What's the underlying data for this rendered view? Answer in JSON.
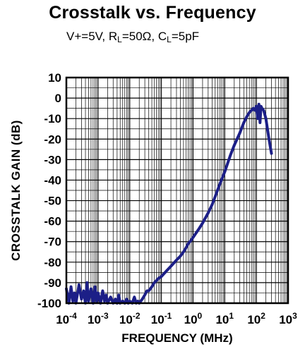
{
  "chart_data": {
    "type": "line",
    "title": "Crosstalk vs. Frequency",
    "subtitle": {
      "parts": [
        {
          "text": "V+=5V, R"
        },
        {
          "text": "L",
          "sub": true
        },
        {
          "text": "=50Ω, C"
        },
        {
          "text": "L",
          "sub": true
        },
        {
          "text": "=5pF"
        }
      ]
    },
    "xlabel": "FREQUENCY (MHz)",
    "ylabel": "CROSSTALK GAIN (dB)",
    "x_scale": "log",
    "xlim": [
      0.0001,
      1000
    ],
    "ylim": [
      -100,
      10
    ],
    "x_ticks": [
      {
        "base": "10",
        "exp": "-4"
      },
      {
        "base": "10",
        "exp": "-3"
      },
      {
        "base": "10",
        "exp": "-2"
      },
      {
        "base": "10",
        "exp": "-1"
      },
      {
        "base": "10",
        "exp": "0"
      },
      {
        "base": "10",
        "exp": "1"
      },
      {
        "base": "10",
        "exp": "2"
      },
      {
        "base": "10",
        "exp": "3"
      }
    ],
    "y_ticks": [
      "10",
      "0",
      "-10",
      "-20",
      "-30",
      "-40",
      "-50",
      "-60",
      "-70",
      "-80",
      "-90",
      "-100"
    ],
    "grid": true,
    "line_color": "#1c1f87",
    "series": [
      {
        "x": [
          0.0001,
          0.00012,
          0.00014,
          0.00016,
          0.00018,
          0.0002,
          0.00025,
          0.0003,
          0.00035,
          0.0004,
          0.00045,
          0.0005,
          0.0006,
          0.0007,
          0.0008,
          0.0009,
          0.001,
          0.0012,
          0.0014,
          0.0016,
          0.0018,
          0.002,
          0.0025,
          0.003,
          0.0035,
          0.004,
          0.0045,
          0.005,
          0.006,
          0.007,
          0.008,
          0.009,
          0.01,
          0.012,
          0.014,
          0.016,
          0.018,
          0.02,
          0.025,
          0.03,
          0.035,
          0.04,
          0.05,
          0.06,
          0.07,
          0.08,
          0.1,
          0.15,
          0.2,
          0.3,
          0.4,
          0.5,
          0.6,
          0.7,
          0.8,
          0.9,
          1,
          1.5,
          2,
          3,
          4,
          5,
          7,
          10,
          15,
          20,
          30,
          40,
          50,
          60,
          70,
          80,
          90,
          100,
          110,
          120,
          130,
          140,
          150,
          170,
          200,
          250,
          300
        ],
        "y": [
          -93,
          -100,
          -92,
          -99,
          -95,
          -100,
          -91,
          -98,
          -94,
          -100,
          -90,
          -99,
          -93,
          -100,
          -92,
          -99,
          -95,
          -100,
          -94,
          -99,
          -96,
          -100,
          -97,
          -100,
          -98,
          -100,
          -96,
          -100,
          -99,
          -100,
          -98,
          -100,
          -99,
          -100,
          -97,
          -100,
          -99,
          -100,
          -98,
          -96,
          -94,
          -94,
          -92,
          -90,
          -89,
          -88,
          -87,
          -84,
          -82,
          -79,
          -77,
          -75,
          -73,
          -71,
          -70,
          -69,
          -68,
          -64,
          -61,
          -56,
          -52,
          -48,
          -42,
          -36,
          -28,
          -23,
          -17,
          -12,
          -9,
          -7,
          -6,
          -5,
          -6,
          -4,
          -10,
          -3,
          -12,
          -4,
          -5,
          -6,
          -10,
          -20,
          -27
        ]
      }
    ]
  }
}
